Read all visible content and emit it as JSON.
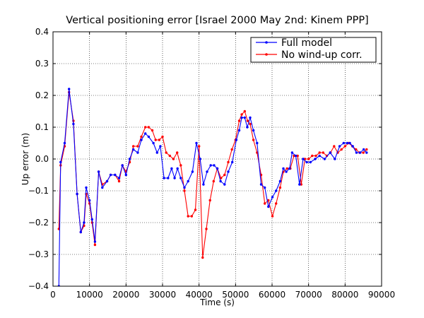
{
  "chart_data": {
    "type": "line",
    "title": "Vertical positioning error [Israel 2000 May 2nd: Kinem PPP]",
    "xlabel": "Time (s)",
    "ylabel": "Up error (m)",
    "xlim": [
      0,
      90000
    ],
    "ylim": [
      -0.4,
      0.4
    ],
    "xticks": [
      0,
      10000,
      20000,
      30000,
      40000,
      50000,
      60000,
      70000,
      80000,
      90000
    ],
    "yticks": [
      -0.4,
      -0.3,
      -0.2,
      -0.1,
      0.0,
      0.1,
      0.2,
      0.3,
      0.4
    ],
    "xtick_labels": [
      "0",
      "10000",
      "20000",
      "30000",
      "40000",
      "50000",
      "60000",
      "70000",
      "80000",
      "90000"
    ],
    "ytick_labels": [
      "−0.4",
      "−0.3",
      "−0.2",
      "−0.1",
      "0.0",
      "0.1",
      "0.2",
      "0.3",
      "0.4"
    ],
    "grid": true,
    "legend": "top-right",
    "series": [
      {
        "name": "Full model",
        "color": "#0000ff",
        "x": [
          1600,
          2100,
          3200,
          4400,
          5600,
          6600,
          7600,
          8500,
          9100,
          10000,
          10700,
          11500,
          12500,
          13500,
          14800,
          15800,
          17000,
          18100,
          19000,
          20000,
          21000,
          22000,
          23200,
          24200,
          25300,
          26200,
          27500,
          28500,
          29400,
          30400,
          31500,
          32500,
          33300,
          34100,
          35000,
          36000,
          37000,
          38200,
          39300,
          40300,
          41200,
          42200,
          43200,
          44100,
          45000,
          45900,
          47000,
          48000,
          49100,
          50200,
          51000,
          51700,
          52500,
          53200,
          54000,
          54900,
          55900,
          57000,
          58000,
          59000,
          60100,
          61100,
          62200,
          63100,
          63900,
          64800,
          65500,
          66500,
          67500,
          68500,
          69500,
          70500,
          71800,
          73000,
          74400,
          75900,
          77200,
          78500,
          79600,
          80600,
          81300,
          82100,
          83100,
          84100,
          85100,
          85900
        ],
        "y": [
          -0.4,
          -0.01,
          0.05,
          0.22,
          0.11,
          -0.11,
          -0.23,
          -0.2,
          -0.09,
          -0.13,
          -0.19,
          -0.26,
          -0.04,
          -0.09,
          -0.07,
          -0.05,
          -0.05,
          -0.06,
          -0.02,
          -0.05,
          0.0,
          0.03,
          0.02,
          0.06,
          0.08,
          0.07,
          0.05,
          0.02,
          0.04,
          -0.06,
          -0.06,
          -0.03,
          -0.06,
          -0.03,
          -0.06,
          -0.09,
          -0.07,
          -0.04,
          0.05,
          0.0,
          -0.08,
          -0.04,
          -0.02,
          -0.02,
          -0.03,
          -0.07,
          -0.08,
          -0.04,
          -0.01,
          0.06,
          0.09,
          0.13,
          0.13,
          0.1,
          0.13,
          0.09,
          0.05,
          -0.08,
          -0.09,
          -0.15,
          -0.12,
          -0.1,
          -0.07,
          -0.03,
          -0.04,
          -0.03,
          0.02,
          0.01,
          -0.08,
          0.0,
          -0.01,
          -0.01,
          0.0,
          0.01,
          0.0,
          0.02,
          0.0,
          0.04,
          0.05,
          0.05,
          0.05,
          0.04,
          0.02,
          0.02,
          0.03,
          0.02
        ]
      },
      {
        "name": "No wind-up corr.",
        "color": "#ff0000",
        "x": [
          1600,
          2100,
          3200,
          4400,
          5600,
          6600,
          7600,
          8500,
          9100,
          10000,
          10700,
          11500,
          12500,
          13500,
          14800,
          15800,
          17000,
          18100,
          19000,
          20000,
          21000,
          22000,
          23200,
          24200,
          25300,
          26200,
          27200,
          28100,
          29100,
          30000,
          31000,
          32000,
          33000,
          34000,
          35000,
          36000,
          37000,
          38000,
          39000,
          40000,
          41000,
          42000,
          43000,
          44000,
          45000,
          46000,
          47000,
          48000,
          49000,
          50000,
          51000,
          51700,
          52500,
          53300,
          54000,
          54900,
          55900,
          57000,
          58000,
          59000,
          60100,
          61100,
          62200,
          63100,
          64100,
          65000,
          66000,
          67000,
          68000,
          69000,
          70000,
          71000,
          72000,
          73000,
          74000,
          75000,
          76000,
          77000,
          78000,
          79000,
          80000,
          81000,
          82000,
          83000,
          84000,
          85000,
          85900
        ],
        "y": [
          -0.22,
          -0.02,
          0.04,
          0.21,
          0.12,
          -0.11,
          -0.23,
          -0.21,
          -0.11,
          -0.14,
          -0.2,
          -0.27,
          -0.04,
          -0.08,
          -0.07,
          -0.05,
          -0.05,
          -0.07,
          -0.02,
          -0.04,
          -0.01,
          0.04,
          0.04,
          0.07,
          0.1,
          0.1,
          0.09,
          0.06,
          0.06,
          0.07,
          0.02,
          0.01,
          0.0,
          0.02,
          -0.02,
          -0.1,
          -0.18,
          -0.18,
          -0.16,
          0.04,
          -0.31,
          -0.22,
          -0.13,
          -0.07,
          -0.03,
          -0.06,
          -0.05,
          -0.01,
          0.03,
          0.06,
          0.12,
          0.14,
          0.15,
          0.12,
          0.11,
          0.06,
          0.02,
          -0.05,
          -0.14,
          -0.13,
          -0.18,
          -0.14,
          -0.09,
          -0.04,
          -0.03,
          -0.03,
          0.01,
          0.01,
          -0.08,
          0.0,
          0.0,
          0.01,
          0.01,
          0.02,
          0.02,
          0.01,
          0.02,
          0.04,
          0.02,
          0.03,
          0.04,
          0.05,
          0.04,
          0.03,
          0.02,
          0.02,
          0.03
        ]
      }
    ]
  }
}
